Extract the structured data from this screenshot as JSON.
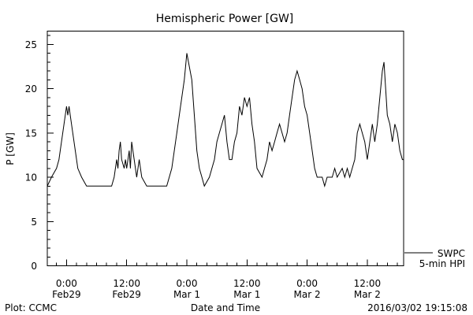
{
  "chart_data": {
    "type": "line",
    "title": "Hemispheric Power [GW]",
    "xlabel": "Date and Time",
    "ylabel": "P [GW]",
    "ylim": [
      0,
      26.5
    ],
    "xlim": [
      "2016-02-28T20:10",
      "2016-03-02T19:15"
    ],
    "y_ticks": [
      0,
      5,
      10,
      15,
      20,
      25
    ],
    "x_ticks": [
      {
        "x": "2016-02-29T00:00",
        "line1": "0:00",
        "line2": "Feb29"
      },
      {
        "x": "2016-02-29T12:00",
        "line1": "12:00",
        "line2": "Feb29"
      },
      {
        "x": "2016-03-01T00:00",
        "line1": "0:00",
        "line2": "Mar 1"
      },
      {
        "x": "2016-03-01T12:00",
        "line1": "12:00",
        "line2": "Mar 1"
      },
      {
        "x": "2016-03-02T00:00",
        "line1": "0:00",
        "line2": "Mar 2"
      },
      {
        "x": "2016-03-02T12:00",
        "line1": "12:00",
        "line2": "Mar 2"
      }
    ],
    "grid": false,
    "legend": {
      "placement": "bottom-right",
      "entries": [
        "SWPC",
        "5-min HPI"
      ]
    },
    "series": [
      {
        "name": "SWPC",
        "points": [
          [
            "2016-02-28T20:10",
            9
          ],
          [
            "2016-02-28T21:00",
            10
          ],
          [
            "2016-02-28T22:00",
            11
          ],
          [
            "2016-02-28T22:30",
            12
          ],
          [
            "2016-02-28T23:00",
            14
          ],
          [
            "2016-02-28T23:30",
            16
          ],
          [
            "2016-02-28T23:45",
            17
          ],
          [
            "2016-02-29T00:00",
            18
          ],
          [
            "2016-02-29T00:15",
            17
          ],
          [
            "2016-02-29T00:30",
            18
          ],
          [
            "2016-02-29T00:45",
            17
          ],
          [
            "2016-02-29T01:15",
            15
          ],
          [
            "2016-02-29T01:45",
            13
          ],
          [
            "2016-02-29T02:15",
            11
          ],
          [
            "2016-02-29T03:00",
            10
          ],
          [
            "2016-02-29T04:00",
            9
          ],
          [
            "2016-02-29T09:00",
            9
          ],
          [
            "2016-02-29T09:30",
            10
          ],
          [
            "2016-02-29T10:00",
            12
          ],
          [
            "2016-02-29T10:15",
            11
          ],
          [
            "2016-02-29T10:30",
            13
          ],
          [
            "2016-02-29T10:45",
            14
          ],
          [
            "2016-02-29T11:00",
            12
          ],
          [
            "2016-02-29T11:30",
            11
          ],
          [
            "2016-02-29T11:45",
            12
          ],
          [
            "2016-02-29T12:00",
            11
          ],
          [
            "2016-02-29T12:15",
            12
          ],
          [
            "2016-02-29T12:30",
            13
          ],
          [
            "2016-02-29T12:45",
            11
          ],
          [
            "2016-02-29T13:00",
            14
          ],
          [
            "2016-02-29T13:30",
            12
          ],
          [
            "2016-02-29T14:00",
            10
          ],
          [
            "2016-02-29T14:15",
            11
          ],
          [
            "2016-02-29T14:30",
            12
          ],
          [
            "2016-02-29T15:00",
            10
          ],
          [
            "2016-02-29T16:00",
            9
          ],
          [
            "2016-02-29T20:00",
            9
          ],
          [
            "2016-02-29T21:00",
            11
          ],
          [
            "2016-02-29T22:00",
            15
          ],
          [
            "2016-02-29T22:45",
            18
          ],
          [
            "2016-02-29T23:30",
            21
          ],
          [
            "2016-03-01T00:00",
            24
          ],
          [
            "2016-03-01T00:20",
            23
          ],
          [
            "2016-03-01T00:40",
            22
          ],
          [
            "2016-03-01T01:00",
            21
          ],
          [
            "2016-03-01T01:30",
            17
          ],
          [
            "2016-03-01T02:00",
            13
          ],
          [
            "2016-03-01T02:30",
            11
          ],
          [
            "2016-03-01T03:00",
            10
          ],
          [
            "2016-03-01T03:30",
            9
          ],
          [
            "2016-03-01T04:30",
            10
          ],
          [
            "2016-03-01T05:00",
            11
          ],
          [
            "2016-03-01T05:30",
            12
          ],
          [
            "2016-03-01T06:00",
            14
          ],
          [
            "2016-03-01T06:30",
            15
          ],
          [
            "2016-03-01T07:00",
            16
          ],
          [
            "2016-03-01T07:30",
            17
          ],
          [
            "2016-03-01T08:00",
            14
          ],
          [
            "2016-03-01T08:30",
            12
          ],
          [
            "2016-03-01T09:00",
            12
          ],
          [
            "2016-03-01T09:30",
            14
          ],
          [
            "2016-03-01T10:00",
            15
          ],
          [
            "2016-03-01T10:30",
            18
          ],
          [
            "2016-03-01T11:00",
            17
          ],
          [
            "2016-03-01T11:30",
            19
          ],
          [
            "2016-03-01T12:00",
            18
          ],
          [
            "2016-03-01T12:30",
            19
          ],
          [
            "2016-03-01T13:00",
            16
          ],
          [
            "2016-03-01T13:30",
            14
          ],
          [
            "2016-03-01T14:00",
            11
          ],
          [
            "2016-03-01T15:00",
            10
          ],
          [
            "2016-03-01T15:30",
            11
          ],
          [
            "2016-03-01T16:00",
            12
          ],
          [
            "2016-03-01T16:30",
            14
          ],
          [
            "2016-03-01T17:00",
            13
          ],
          [
            "2016-03-01T17:30",
            14
          ],
          [
            "2016-03-01T18:00",
            15
          ],
          [
            "2016-03-01T18:30",
            16
          ],
          [
            "2016-03-01T19:00",
            15
          ],
          [
            "2016-03-01T19:30",
            14
          ],
          [
            "2016-03-01T20:00",
            15
          ],
          [
            "2016-03-01T20:30",
            17
          ],
          [
            "2016-03-01T21:00",
            19
          ],
          [
            "2016-03-01T21:30",
            21
          ],
          [
            "2016-03-01T22:00",
            22
          ],
          [
            "2016-03-01T22:30",
            21
          ],
          [
            "2016-03-01T23:00",
            20
          ],
          [
            "2016-03-01T23:30",
            18
          ],
          [
            "2016-03-02T00:00",
            17
          ],
          [
            "2016-03-02T00:30",
            15
          ],
          [
            "2016-03-02T01:00",
            13
          ],
          [
            "2016-03-02T01:30",
            11
          ],
          [
            "2016-03-02T02:00",
            10
          ],
          [
            "2016-03-02T03:00",
            10
          ],
          [
            "2016-03-02T03:30",
            9
          ],
          [
            "2016-03-02T04:00",
            10
          ],
          [
            "2016-03-02T05:00",
            10
          ],
          [
            "2016-03-02T05:30",
            11
          ],
          [
            "2016-03-02T06:00",
            10
          ],
          [
            "2016-03-02T07:00",
            11
          ],
          [
            "2016-03-02T07:30",
            10
          ],
          [
            "2016-03-02T08:00",
            11
          ],
          [
            "2016-03-02T08:30",
            10
          ],
          [
            "2016-03-02T09:00",
            11
          ],
          [
            "2016-03-02T09:30",
            12
          ],
          [
            "2016-03-02T10:00",
            15
          ],
          [
            "2016-03-02T10:30",
            16
          ],
          [
            "2016-03-02T11:00",
            15
          ],
          [
            "2016-03-02T11:30",
            14
          ],
          [
            "2016-03-02T12:00",
            12
          ],
          [
            "2016-03-02T12:30",
            14
          ],
          [
            "2016-03-02T13:00",
            16
          ],
          [
            "2016-03-02T13:30",
            14
          ],
          [
            "2016-03-02T14:00",
            16
          ],
          [
            "2016-03-02T14:30",
            19
          ],
          [
            "2016-03-02T15:00",
            22
          ],
          [
            "2016-03-02T15:20",
            23
          ],
          [
            "2016-03-02T15:40",
            20
          ],
          [
            "2016-03-02T16:00",
            17
          ],
          [
            "2016-03-02T16:30",
            16
          ],
          [
            "2016-03-02T17:00",
            14
          ],
          [
            "2016-03-02T17:30",
            16
          ],
          [
            "2016-03-02T18:00",
            15
          ],
          [
            "2016-03-02T18:30",
            13
          ],
          [
            "2016-03-02T19:00",
            12
          ],
          [
            "2016-03-02T19:15",
            12
          ]
        ]
      }
    ]
  },
  "footer": {
    "plot_label": "Plot: CCMC",
    "timestamp": "2016/03/02 19:15:08"
  }
}
